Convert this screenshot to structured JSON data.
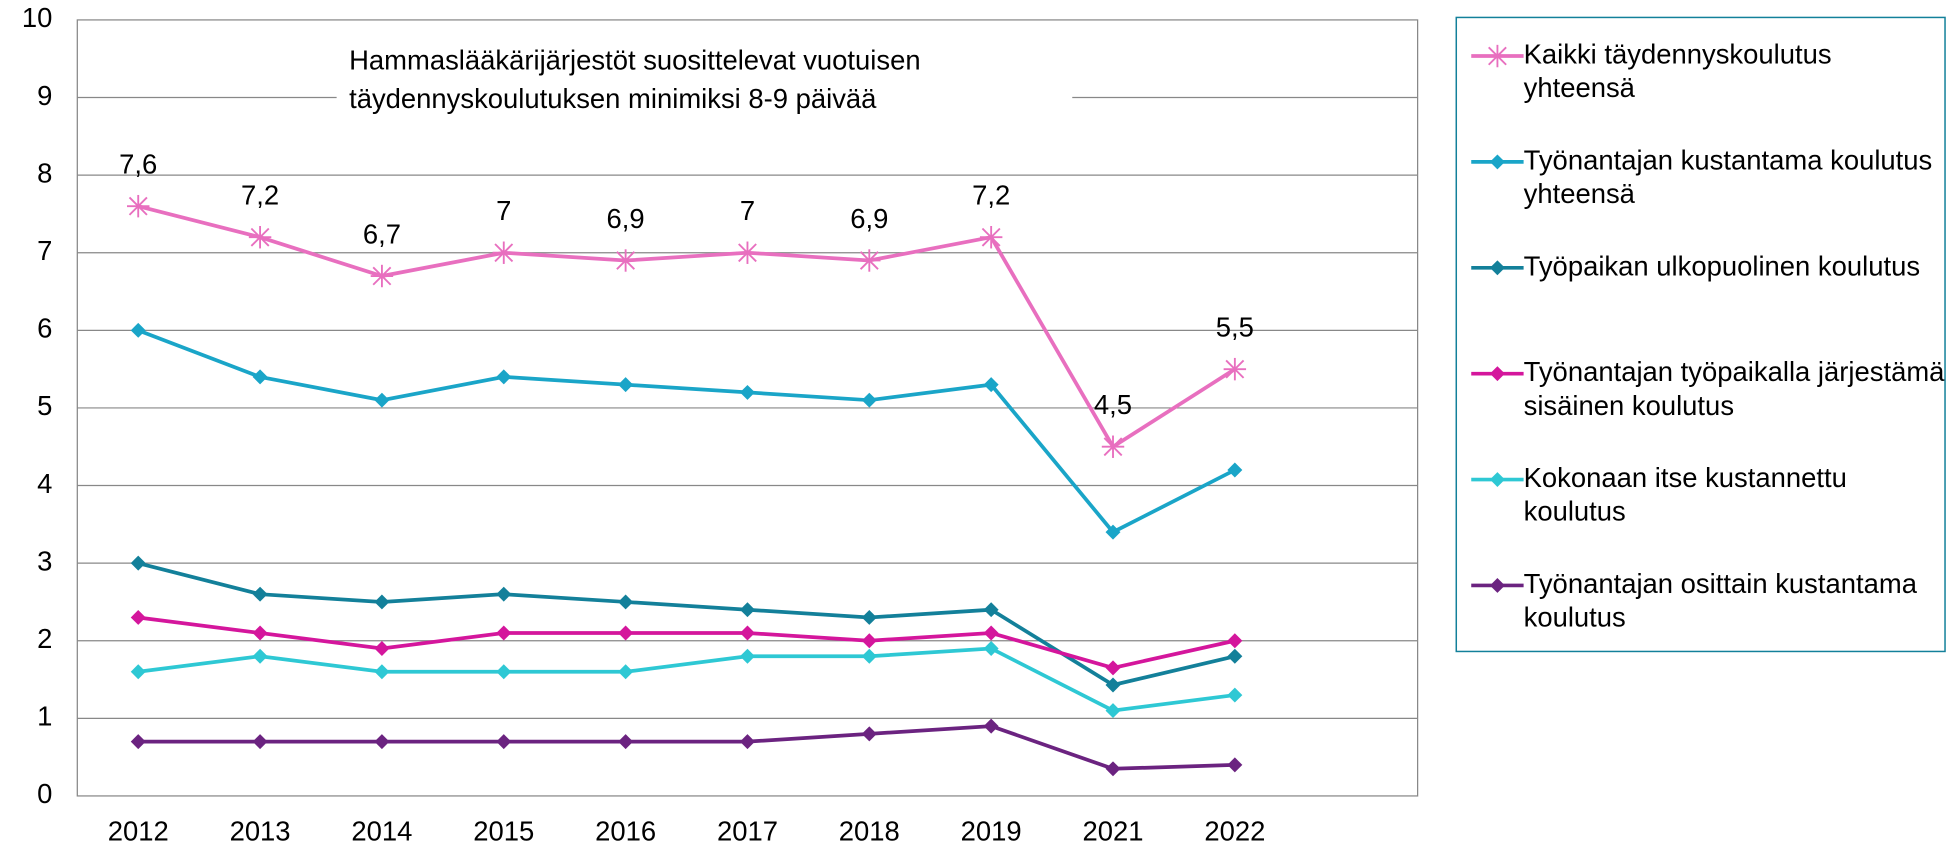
{
  "chart_data": {
    "type": "line",
    "categories": [
      "2012",
      "2013",
      "2014",
      "2015",
      "2016",
      "2017",
      "2018",
      "2019",
      "2021",
      "2022"
    ],
    "annotation": [
      "Hammaslääkärijärjestöt suosittelevat vuotuisen",
      "täydennyskoulutuksen minimiksi 8-9 päivää"
    ],
    "ylim": [
      0,
      10
    ],
    "yticks": [
      0,
      1,
      2,
      3,
      4,
      5,
      6,
      7,
      8,
      9,
      10
    ],
    "grid": true,
    "legend": "right",
    "series": [
      {
        "name": "Kaikki täydennyskoulutus yhteensä",
        "color": "#e86fbf",
        "marker": "asterisk",
        "values": [
          7.6,
          7.2,
          6.7,
          7,
          6.9,
          7,
          6.9,
          7.2,
          4.5,
          5.5
        ],
        "value_labels": [
          "7,6",
          "7,2",
          "6,7",
          "7",
          "6,9",
          "7",
          "6,9",
          "7,2",
          "4,5",
          "5,5"
        ]
      },
      {
        "name": "Työnantajan kustantama koulutus yhteensä",
        "color": "#1aa5c8",
        "marker": "diamond",
        "values": [
          6.0,
          5.4,
          5.1,
          5.4,
          5.3,
          5.2,
          5.1,
          5.3,
          3.4,
          4.2
        ]
      },
      {
        "name": "Työpaikan ulkopuolinen koulutus",
        "color": "#13809a",
        "marker": "diamond",
        "values": [
          3.0,
          2.6,
          2.5,
          2.6,
          2.5,
          2.4,
          2.3,
          2.4,
          1.43,
          1.8
        ]
      },
      {
        "name": "Työnantajan työpaikalla järjestämä sisäinen koulutus",
        "color": "#d4169c",
        "marker": "diamond",
        "values": [
          2.3,
          2.1,
          1.9,
          2.1,
          2.1,
          2.1,
          2.0,
          2.1,
          1.65,
          2.0
        ]
      },
      {
        "name": "Kokonaan itse kustannettu koulutus",
        "color": "#2ec8d4",
        "marker": "diamond",
        "values": [
          1.6,
          1.8,
          1.6,
          1.6,
          1.6,
          1.8,
          1.8,
          1.9,
          1.1,
          1.3
        ]
      },
      {
        "name": "Työnantajan osittain kustantama koulutus",
        "color": "#6b2380",
        "marker": "diamond",
        "values": [
          0.7,
          0.7,
          0.7,
          0.7,
          0.7,
          0.7,
          0.8,
          0.9,
          0.35,
          0.4
        ]
      }
    ]
  }
}
